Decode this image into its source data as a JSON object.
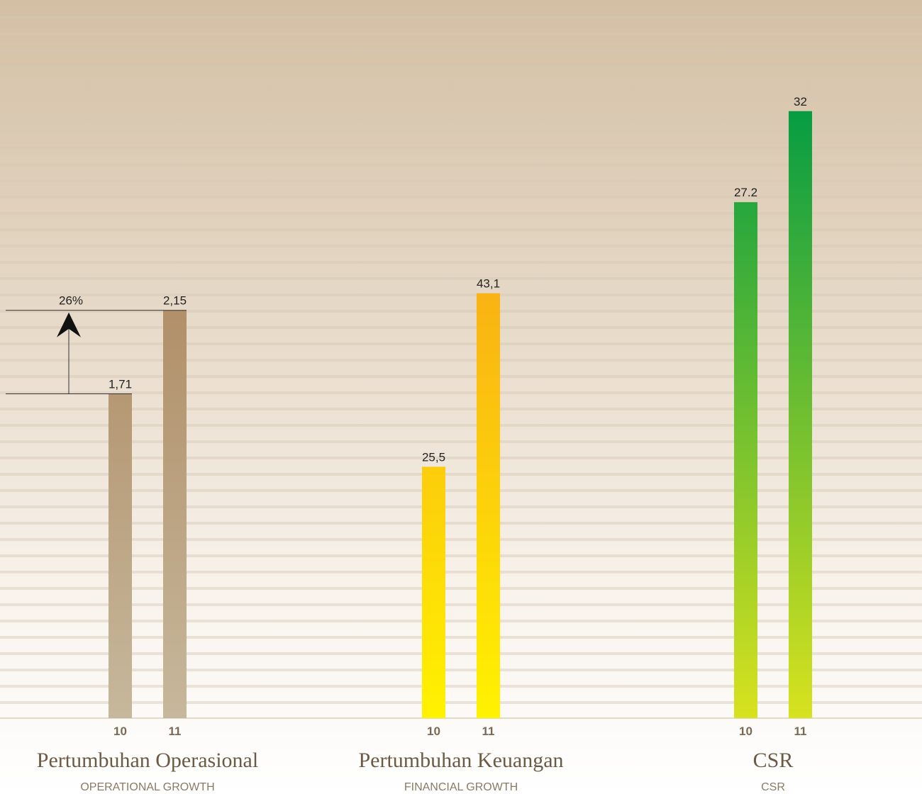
{
  "chart_data": [
    {
      "type": "bar",
      "title": "Pertumbuhan Operasional",
      "subtitle": "OPERATIONAL GROWTH",
      "categories": [
        "10",
        "11"
      ],
      "values": [
        1.71,
        2.15
      ],
      "value_labels": [
        "1,71",
        "2,15"
      ],
      "gradient": [
        "#a67a4e",
        "#c6b89c"
      ],
      "ylim": [
        0,
        3.3
      ],
      "annotation": "26%"
    },
    {
      "type": "bar",
      "title": "Pertumbuhan Keuangan",
      "subtitle": "FINANCIAL GROWTH",
      "categories": [
        "10",
        "11"
      ],
      "values": [
        25.5,
        43.1
      ],
      "value_labels": [
        "25,5",
        "43,1"
      ],
      "gradient": [
        "#f7941d",
        "#fff200"
      ],
      "ylim": [
        0,
        63.5
      ]
    },
    {
      "type": "bar",
      "title": "CSR",
      "subtitle": "CSR",
      "categories": [
        "10",
        "11"
      ],
      "values": [
        27.2,
        32
      ],
      "gradient": [
        "#009a44",
        "#d8e21e"
      ],
      "ylim": [
        0,
        33
      ]
    }
  ]
}
